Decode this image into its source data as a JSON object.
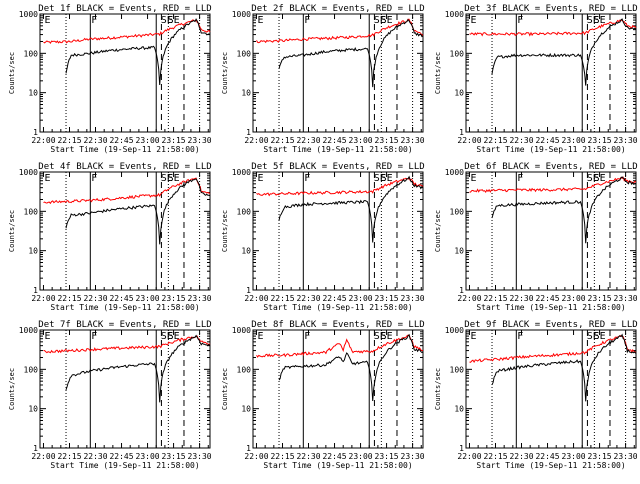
{
  "figure": {
    "axes_common": {
      "ylabel": "Counts/sec",
      "y_ticks": [
        "1",
        "10",
        "100",
        "1000"
      ],
      "x_ticks": [
        "22:00",
        "22:15",
        "22:30",
        "22:45",
        "23:00",
        "23:15",
        "23:30"
      ],
      "ylim": [
        1,
        1000
      ],
      "y_scale": "log",
      "colors": {
        "events": "#000000",
        "lld": "#ff0000"
      }
    },
    "panels": [
      {
        "title": "Det 1f BLACK = Events, RED = LLD",
        "xlabel": "Start Time (19-Sep-11 21:58:00)",
        "markers": [
          "E",
          "F",
          "SE"
        ]
      },
      {
        "title": "Det 2f BLACK = Events, RED = LLD",
        "xlabel": "Start Time (19-Sep-11 21:58:00)",
        "markers": [
          "E",
          "F",
          "SE"
        ]
      },
      {
        "title": "Det 3f BLACK = Events, RED = LLD",
        "xlabel": "Start Time (19-Sep-11 21:58:00)",
        "markers": [
          "E",
          "F",
          "SE"
        ]
      },
      {
        "title": "Det 4f BLACK = Events, RED = LLD",
        "xlabel": "Start Time (19-Sep-11 21:58:00)",
        "markers": [
          "E",
          "F",
          "SE"
        ]
      },
      {
        "title": "Det 5f BLACK = Events, RED = LLD",
        "xlabel": "Start Time (19-Sep-11 21:58:00)",
        "markers": [
          "E",
          "F",
          "SE"
        ]
      },
      {
        "title": "Det 6f BLACK = Events, RED = LLD",
        "xlabel": "Start Time (19-Sep-11 21:58:00)",
        "markers": [
          "E",
          "F",
          "SE"
        ]
      },
      {
        "title": "Det 7f BLACK = Events, RED = LLD",
        "xlabel": "Start Time (19-Sep-11 21:58:00)",
        "markers": [
          "E",
          "F",
          "SE"
        ]
      },
      {
        "title": "Det 8f BLACK = Events, RED = LLD",
        "xlabel": "Start Time (19-Sep-11 21:58:00)",
        "markers": [
          "E",
          "F",
          "SE"
        ]
      },
      {
        "title": "Det 9f BLACK = Events, RED = LLD",
        "xlabel": "Start Time (19-Sep-11 21:58:00)",
        "markers": [
          "E",
          "F",
          "SE"
        ]
      }
    ]
  },
  "chart_data": [
    {
      "type": "line",
      "title": "Det 1f BLACK = Events, RED = LLD",
      "xlabel": "Start Time (19-Sep-11 21:58:00)",
      "ylabel": "Counts/sec",
      "xlim": [
        "21:58",
        "23:36"
      ],
      "ylim": [
        1,
        1000
      ],
      "y_scale": "log",
      "grid": false,
      "vlines": {
        "dotted": [
          "22:13",
          "23:12",
          "23:30"
        ],
        "solid": [
          "22:27",
          "23:05"
        ],
        "dashed": [
          "23:08",
          "23:21"
        ]
      },
      "series": [
        {
          "name": "Events",
          "color": "#000000",
          "x": [
            "22:13",
            "22:16",
            "22:27",
            "22:40",
            "22:55",
            "23:04",
            "23:07",
            "23:28",
            "23:31",
            "23:36"
          ],
          "values": [
            30,
            90,
            100,
            120,
            135,
            140,
            15,
            700,
            350,
            300
          ]
        },
        {
          "name": "LLD",
          "color": "#ff0000",
          "x": [
            "22:00",
            "22:16",
            "22:27",
            "22:40",
            "22:55",
            "23:07",
            "23:28",
            "23:31",
            "23:36"
          ],
          "values": [
            190,
            200,
            230,
            250,
            280,
            310,
            700,
            400,
            350
          ]
        }
      ]
    },
    {
      "type": "line",
      "title": "Det 2f BLACK = Events, RED = LLD",
      "xlabel": "Start Time (19-Sep-11 21:58:00)",
      "ylabel": "Counts/sec",
      "xlim": [
        "21:58",
        "23:36"
      ],
      "ylim": [
        1,
        1000
      ],
      "y_scale": "log",
      "grid": false,
      "vlines": {
        "dotted": [
          "22:13",
          "23:12",
          "23:30"
        ],
        "solid": [
          "22:27",
          "23:05"
        ],
        "dashed": [
          "23:08",
          "23:21"
        ]
      },
      "series": [
        {
          "name": "Events",
          "color": "#000000",
          "x": [
            "22:13",
            "22:16",
            "22:27",
            "22:40",
            "22:55",
            "23:04",
            "23:07",
            "23:28",
            "23:31",
            "23:36"
          ],
          "values": [
            40,
            80,
            90,
            110,
            125,
            130,
            15,
            700,
            320,
            280
          ]
        },
        {
          "name": "LLD",
          "color": "#ff0000",
          "x": [
            "22:00",
            "22:16",
            "22:27",
            "22:40",
            "22:55",
            "23:07",
            "23:28",
            "23:31",
            "23:36"
          ],
          "values": [
            200,
            210,
            230,
            240,
            260,
            290,
            700,
            380,
            300
          ]
        }
      ]
    },
    {
      "type": "line",
      "title": "Det 3f BLACK = Events, RED = LLD",
      "xlabel": "Start Time (19-Sep-11 21:58:00)",
      "ylabel": "Counts/sec",
      "xlim": [
        "21:58",
        "23:36"
      ],
      "ylim": [
        1,
        1000
      ],
      "y_scale": "log",
      "grid": false,
      "vlines": {
        "dotted": [
          "22:13",
          "23:12",
          "23:30"
        ],
        "solid": [
          "22:27",
          "23:05"
        ],
        "dashed": [
          "23:08",
          "23:21"
        ]
      },
      "series": [
        {
          "name": "Events",
          "color": "#000000",
          "x": [
            "22:13",
            "22:16",
            "22:27",
            "22:40",
            "22:55",
            "23:04",
            "23:07",
            "23:28",
            "23:31",
            "23:36"
          ],
          "values": [
            30,
            80,
            90,
            90,
            90,
            90,
            15,
            700,
            450,
            400
          ]
        },
        {
          "name": "LLD",
          "color": "#ff0000",
          "x": [
            "22:00",
            "22:16",
            "22:27",
            "22:40",
            "22:55",
            "23:07",
            "23:28",
            "23:31",
            "23:36"
          ],
          "values": [
            310,
            310,
            310,
            310,
            320,
            330,
            700,
            500,
            450
          ]
        }
      ]
    },
    {
      "type": "line",
      "title": "Det 4f BLACK = Events, RED = LLD",
      "xlabel": "Start Time (19-Sep-11 21:58:00)",
      "ylabel": "Counts/sec",
      "xlim": [
        "21:58",
        "23:36"
      ],
      "ylim": [
        1,
        1000
      ],
      "y_scale": "log",
      "grid": false,
      "vlines": {
        "dotted": [
          "22:13",
          "23:12",
          "23:30"
        ],
        "solid": [
          "22:27",
          "23:05"
        ],
        "dashed": [
          "23:08",
          "23:21"
        ]
      },
      "series": [
        {
          "name": "Events",
          "color": "#000000",
          "x": [
            "22:13",
            "22:16",
            "22:27",
            "22:40",
            "22:55",
            "23:04",
            "23:07",
            "23:28",
            "23:31",
            "23:36"
          ],
          "values": [
            40,
            80,
            90,
            110,
            130,
            140,
            15,
            700,
            280,
            250
          ]
        },
        {
          "name": "LLD",
          "color": "#ff0000",
          "x": [
            "22:00",
            "22:16",
            "22:27",
            "22:40",
            "22:55",
            "23:07",
            "23:28",
            "23:31",
            "23:36"
          ],
          "values": [
            170,
            180,
            190,
            210,
            240,
            260,
            700,
            320,
            280
          ]
        }
      ]
    },
    {
      "type": "line",
      "title": "Det 5f BLACK = Events, RED = LLD",
      "xlabel": "Start Time (19-Sep-11 21:58:00)",
      "ylabel": "Counts/sec",
      "xlim": [
        "21:58",
        "23:36"
      ],
      "ylim": [
        1,
        1000
      ],
      "y_scale": "log",
      "grid": false,
      "vlines": {
        "dotted": [
          "22:13",
          "23:12",
          "23:30"
        ],
        "solid": [
          "22:27",
          "23:05"
        ],
        "dashed": [
          "23:08",
          "23:21"
        ]
      },
      "series": [
        {
          "name": "Events",
          "color": "#000000",
          "x": [
            "22:13",
            "22:16",
            "22:27",
            "22:40",
            "22:55",
            "23:04",
            "23:07",
            "23:28",
            "23:31",
            "23:36"
          ],
          "values": [
            60,
            130,
            150,
            160,
            170,
            175,
            15,
            700,
            450,
            400
          ]
        },
        {
          "name": "LLD",
          "color": "#ff0000",
          "x": [
            "22:00",
            "22:16",
            "22:27",
            "22:40",
            "22:55",
            "23:07",
            "23:28",
            "23:31",
            "23:36"
          ],
          "values": [
            270,
            280,
            290,
            300,
            310,
            320,
            700,
            500,
            420
          ]
        }
      ]
    },
    {
      "type": "line",
      "title": "Det 6f BLACK = Events, RED = LLD",
      "xlabel": "Start Time (19-Sep-11 21:58:00)",
      "ylabel": "Counts/sec",
      "xlim": [
        "21:58",
        "23:36"
      ],
      "ylim": [
        1,
        1000
      ],
      "y_scale": "log",
      "grid": false,
      "vlines": {
        "dotted": [
          "22:13",
          "23:12",
          "23:30"
        ],
        "solid": [
          "22:27",
          "23:05"
        ],
        "dashed": [
          "23:08",
          "23:21"
        ]
      },
      "series": [
        {
          "name": "Events",
          "color": "#000000",
          "x": [
            "22:13",
            "22:16",
            "22:27",
            "22:40",
            "22:55",
            "23:04",
            "23:07",
            "23:28",
            "23:31",
            "23:36"
          ],
          "values": [
            70,
            140,
            150,
            160,
            170,
            175,
            15,
            700,
            550,
            500
          ]
        },
        {
          "name": "LLD",
          "color": "#ff0000",
          "x": [
            "22:00",
            "22:16",
            "22:27",
            "22:40",
            "22:55",
            "23:07",
            "23:28",
            "23:31",
            "23:36"
          ],
          "values": [
            330,
            340,
            350,
            350,
            360,
            370,
            700,
            600,
            550
          ]
        }
      ]
    },
    {
      "type": "line",
      "title": "Det 7f BLACK = Events, RED = LLD",
      "xlabel": "Start Time (19-Sep-11 21:58:00)",
      "ylabel": "Counts/sec",
      "xlim": [
        "21:58",
        "23:36"
      ],
      "ylim": [
        1,
        1000
      ],
      "y_scale": "log",
      "grid": false,
      "vlines": {
        "dotted": [
          "22:13",
          "23:12",
          "23:30"
        ],
        "solid": [
          "22:27",
          "23:05"
        ],
        "dashed": [
          "23:08",
          "23:21"
        ]
      },
      "series": [
        {
          "name": "Events",
          "color": "#000000",
          "x": [
            "22:13",
            "22:16",
            "22:27",
            "22:40",
            "22:55",
            "23:04",
            "23:07",
            "23:28",
            "23:31",
            "23:36"
          ],
          "values": [
            30,
            70,
            90,
            110,
            130,
            140,
            15,
            700,
            450,
            400
          ]
        },
        {
          "name": "LLD",
          "color": "#ff0000",
          "x": [
            "22:00",
            "22:16",
            "22:27",
            "22:40",
            "22:55",
            "23:07",
            "23:28",
            "23:31",
            "23:36"
          ],
          "values": [
            280,
            300,
            320,
            340,
            360,
            380,
            700,
            500,
            450
          ]
        }
      ]
    },
    {
      "type": "line",
      "title": "Det 8f BLACK = Events, RED = LLD",
      "xlabel": "Start Time (19-Sep-11 21:58:00)",
      "ylabel": "Counts/sec",
      "xlim": [
        "21:58",
        "23:36"
      ],
      "ylim": [
        1,
        1000
      ],
      "y_scale": "log",
      "grid": false,
      "vlines": {
        "dotted": [
          "22:13",
          "23:12",
          "23:30"
        ],
        "solid": [
          "22:27",
          "23:05"
        ],
        "dashed": [
          "23:08",
          "23:21"
        ]
      },
      "series": [
        {
          "name": "Events",
          "color": "#000000",
          "x": [
            "22:13",
            "22:16",
            "22:27",
            "22:40",
            "22:48",
            "22:50",
            "22:52",
            "22:55",
            "23:04",
            "23:07",
            "23:28",
            "23:31",
            "23:36"
          ],
          "values": [
            50,
            110,
            120,
            130,
            210,
            150,
            250,
            140,
            150,
            15,
            700,
            320,
            280
          ]
        },
        {
          "name": "LLD",
          "color": "#ff0000",
          "x": [
            "22:00",
            "22:16",
            "22:27",
            "22:40",
            "22:48",
            "22:50",
            "22:52",
            "22:55",
            "23:07",
            "23:28",
            "23:31",
            "23:36"
          ],
          "values": [
            220,
            230,
            250,
            270,
            450,
            300,
            550,
            280,
            290,
            700,
            380,
            300
          ]
        }
      ]
    },
    {
      "type": "line",
      "title": "Det 9f BLACK = Events, RED = LLD",
      "xlabel": "Start Time (19-Sep-11 21:58:00)",
      "ylabel": "Counts/sec",
      "xlim": [
        "21:58",
        "23:36"
      ],
      "ylim": [
        1,
        1000
      ],
      "y_scale": "log",
      "grid": false,
      "vlines": {
        "dotted": [
          "22:13",
          "23:12",
          "23:30"
        ],
        "solid": [
          "22:27",
          "23:05"
        ],
        "dashed": [
          "23:08",
          "23:21"
        ]
      },
      "series": [
        {
          "name": "Events",
          "color": "#000000",
          "x": [
            "22:13",
            "22:16",
            "22:27",
            "22:40",
            "22:55",
            "23:04",
            "23:07",
            "23:28",
            "23:31",
            "23:36"
          ],
          "values": [
            40,
            90,
            110,
            130,
            150,
            160,
            15,
            700,
            300,
            250
          ]
        },
        {
          "name": "LLD",
          "color": "#ff0000",
          "x": [
            "22:00",
            "22:16",
            "22:27",
            "22:40",
            "22:55",
            "23:07",
            "23:28",
            "23:31",
            "23:36"
          ],
          "values": [
            160,
            180,
            200,
            220,
            240,
            270,
            700,
            330,
            270
          ]
        }
      ]
    }
  ]
}
